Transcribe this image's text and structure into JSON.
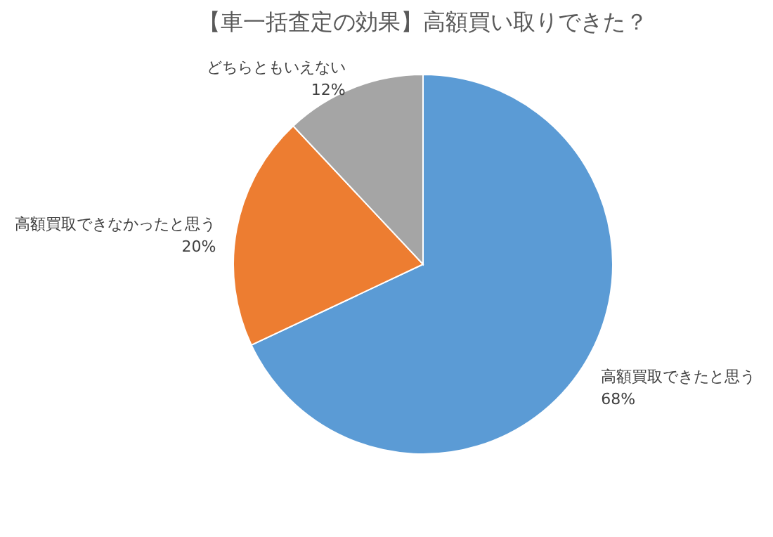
{
  "chart_data": {
    "type": "pie",
    "title": "【車一括査定の効果】高額買い取りできた？",
    "categories": [
      "高額買取できたと思う",
      "高額買取できなかったと思う",
      "どちらともいえない"
    ],
    "values": [
      68,
      20,
      12
    ],
    "value_labels": [
      "68%",
      "20%",
      "12%"
    ],
    "colors": [
      "#5b9bd5",
      "#ed7d31",
      "#a5a5a5"
    ]
  }
}
